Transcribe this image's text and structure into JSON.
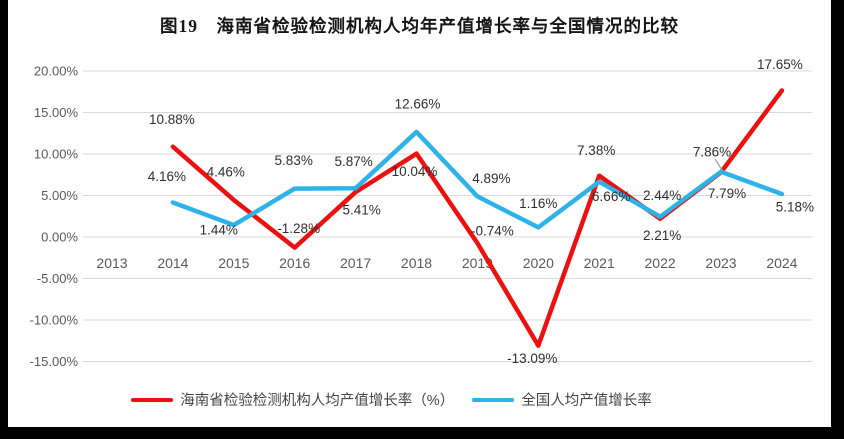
{
  "title": "图19　海南省检验检测机构人均年产值增长率与全国情况的比较",
  "chart_data": {
    "type": "line",
    "title": "图19　海南省检验检测机构人均年产值增长率与全国情况的比较",
    "x": [
      "2013",
      "2014",
      "2015",
      "2016",
      "2017",
      "2018",
      "2019",
      "2020",
      "2021",
      "2022",
      "2023",
      "2024"
    ],
    "series": [
      {
        "name": "海南省检验检测机构人均产值增长率（%）",
        "color": "#ee0f0f",
        "values": [
          null,
          10.88,
          4.46,
          -1.28,
          5.41,
          10.04,
          -0.74,
          -13.09,
          7.38,
          2.21,
          7.79,
          17.65
        ]
      },
      {
        "name": "全国人均产值增长率",
        "color": "#2eb3e8",
        "values": [
          null,
          4.16,
          1.44,
          5.83,
          5.87,
          12.66,
          4.89,
          1.16,
          6.66,
          2.44,
          7.86,
          5.18
        ]
      }
    ],
    "y_ticks": [
      "20.00%",
      "15.00%",
      "10.00%",
      "5.00%",
      "0.00%",
      "-5.00%",
      "-10.00%",
      "-15.00%"
    ],
    "ylim": [
      -15,
      20
    ],
    "xlabel": "",
    "ylabel": "",
    "grid": "horizontal",
    "legend_position": "bottom",
    "data_labels_visible": true
  },
  "colors": {
    "frame": "#000000",
    "panel": "#ffffff",
    "gridline": "#d9d9d9",
    "axis_text": "#595959",
    "data_label_text": "#2f2f2f",
    "leader_line": "#a6a6a6"
  }
}
